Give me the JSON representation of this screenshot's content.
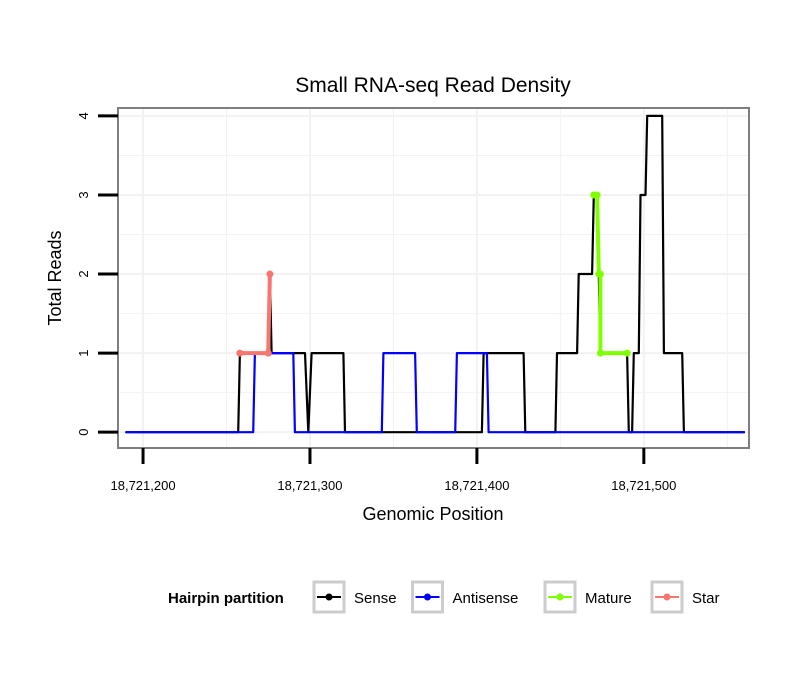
{
  "chart_data": {
    "type": "line",
    "title": "Small RNA-seq Read Density",
    "xlabel": "Genomic Position",
    "ylabel": "Total Reads",
    "xlim": [
      18721185,
      18721563
    ],
    "ylim": [
      -0.2,
      4.1
    ],
    "x_ticks": [
      18721200,
      18721300,
      18721400,
      18721500
    ],
    "x_tick_labels": [
      "18,721,200",
      "18,721,300",
      "18,721,400",
      "18,721,500"
    ],
    "y_ticks": [
      0,
      1,
      2,
      3,
      4
    ],
    "y_tick_labels": [
      "0",
      "1",
      "2",
      "3",
      "4"
    ],
    "grid": true,
    "legend": {
      "title": "Hairpin partition",
      "position": "bottom",
      "entries": [
        "Sense",
        "Antisense",
        "Mature",
        "Star"
      ]
    },
    "series": [
      {
        "name": "Sense",
        "color": "#000000",
        "line_width": 2.2,
        "points": [
          [
            18721190,
            0
          ],
          [
            18721257,
            0
          ],
          [
            18721258,
            1
          ],
          [
            18721275,
            1
          ],
          [
            18721276,
            2
          ],
          [
            18721277,
            1
          ],
          [
            18721297,
            1
          ],
          [
            18721299,
            0
          ],
          [
            18721301,
            1
          ],
          [
            18721320,
            1
          ],
          [
            18721321,
            0
          ],
          [
            18721403,
            0
          ],
          [
            18721404,
            1
          ],
          [
            18721428,
            1
          ],
          [
            18721429,
            0
          ],
          [
            18721447,
            0
          ],
          [
            18721448,
            1
          ],
          [
            18721460,
            1
          ],
          [
            18721461,
            2
          ],
          [
            18721469,
            2
          ],
          [
            18721470,
            3
          ],
          [
            18721472,
            3
          ],
          [
            18721473,
            2
          ],
          [
            18721474,
            1
          ],
          [
            18721490,
            1
          ],
          [
            18721491,
            0
          ],
          [
            18721493,
            0
          ],
          [
            18721494,
            1
          ],
          [
            18721497,
            1
          ],
          [
            18721498,
            3
          ],
          [
            18721501,
            3
          ],
          [
            18721502,
            4
          ],
          [
            18721511,
            4
          ],
          [
            18721512,
            1
          ],
          [
            18721523,
            1
          ],
          [
            18721524,
            0
          ],
          [
            18721560,
            0
          ]
        ]
      },
      {
        "name": "Antisense",
        "color": "#0000ff",
        "line_width": 2.2,
        "points": [
          [
            18721190,
            0
          ],
          [
            18721266,
            0
          ],
          [
            18721267,
            1
          ],
          [
            18721290,
            1
          ],
          [
            18721291,
            0
          ],
          [
            18721343,
            0
          ],
          [
            18721344,
            1
          ],
          [
            18721363,
            1
          ],
          [
            18721364,
            0
          ],
          [
            18721387,
            0
          ],
          [
            18721388,
            1
          ],
          [
            18721406,
            1
          ],
          [
            18721407,
            0
          ],
          [
            18721560,
            0
          ]
        ]
      },
      {
        "name": "Mature",
        "color": "#7fff00",
        "line_width": 4,
        "points": [
          [
            18721470,
            3
          ],
          [
            18721472,
            3
          ],
          [
            18721473,
            2
          ],
          [
            18721474,
            2
          ],
          [
            18721474,
            1
          ],
          [
            18721490,
            1
          ]
        ]
      },
      {
        "name": "Star",
        "color": "#f8766d",
        "line_width": 4,
        "points": [
          [
            18721258,
            1
          ],
          [
            18721275,
            1
          ],
          [
            18721276,
            2
          ]
        ]
      }
    ]
  }
}
